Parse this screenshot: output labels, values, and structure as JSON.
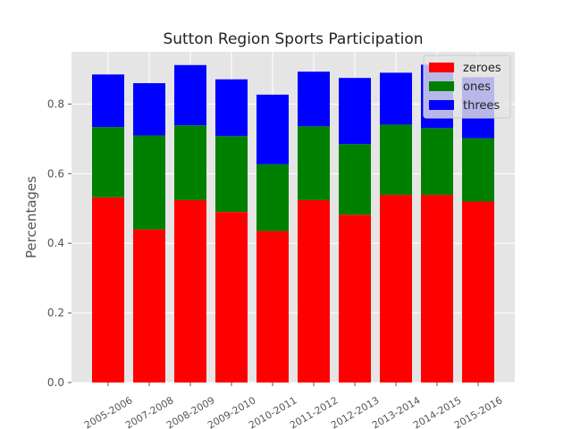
{
  "chart_data": {
    "type": "bar",
    "stacked": true,
    "title": "Sutton Region Sports Participation",
    "xlabel": "",
    "ylabel": "Percentages",
    "ylim": [
      0,
      0.95
    ],
    "yticks": [
      "0.0",
      "0.2",
      "0.4",
      "0.6",
      "0.8"
    ],
    "grid": true,
    "legend_position": "top-right",
    "categories": [
      "2005-2006",
      "2007-2008",
      "2008-2009",
      "2009-2010",
      "2010-2011",
      "2011-2012",
      "2012-2013",
      "2013-2014",
      "2014-2015",
      "2015-2016"
    ],
    "series": [
      {
        "name": "zeroes",
        "color": "#ff0000",
        "values": [
          0.532,
          0.44,
          0.524,
          0.49,
          0.435,
          0.524,
          0.482,
          0.539,
          0.539,
          0.52
        ]
      },
      {
        "name": "ones",
        "color": "#008000",
        "values": [
          0.202,
          0.27,
          0.215,
          0.218,
          0.192,
          0.212,
          0.203,
          0.202,
          0.192,
          0.182
        ]
      },
      {
        "name": "threes",
        "color": "#0000ff",
        "values": [
          0.151,
          0.15,
          0.173,
          0.163,
          0.2,
          0.157,
          0.19,
          0.149,
          0.182,
          0.175
        ]
      }
    ]
  }
}
